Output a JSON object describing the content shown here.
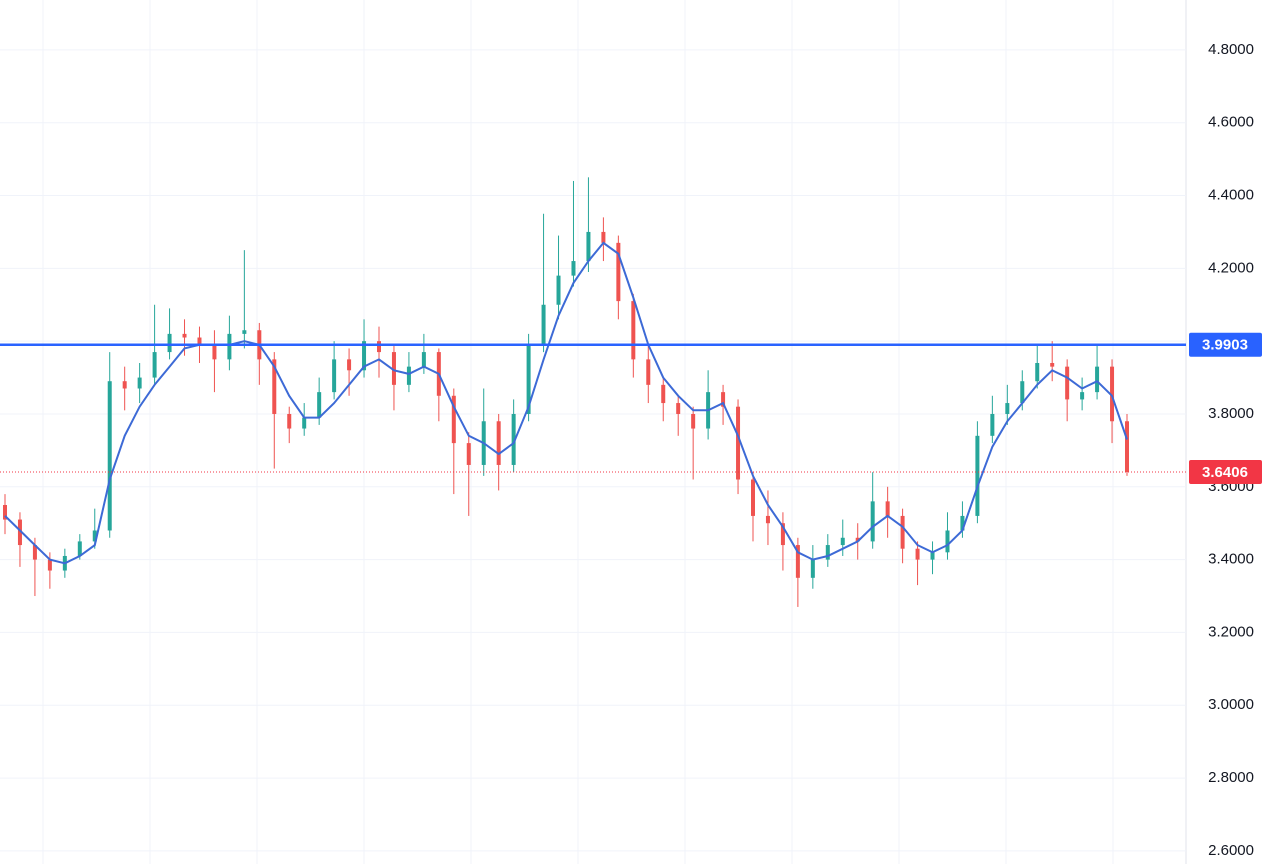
{
  "chart_data": {
    "type": "candlestick",
    "open": [
      3.55,
      3.51,
      3.44,
      3.4,
      3.37,
      3.41,
      3.45,
      3.48,
      3.89,
      3.87,
      3.9,
      3.97,
      4.02,
      4.01,
      3.99,
      3.95,
      4.02,
      4.03,
      3.95,
      3.8,
      3.76,
      3.79,
      3.86,
      3.95,
      3.92,
      4.0,
      3.97,
      3.88,
      3.93,
      3.97,
      3.85,
      3.72,
      3.66,
      3.78,
      3.66,
      3.8,
      3.99,
      4.1,
      4.18,
      4.22,
      4.3,
      4.27,
      4.11,
      3.95,
      3.88,
      3.83,
      3.8,
      3.76,
      3.86,
      3.82,
      3.62,
      3.52,
      3.5,
      3.44,
      3.35,
      3.4,
      3.44,
      3.46,
      3.45,
      3.56,
      3.52,
      3.43,
      3.4,
      3.42,
      3.48,
      3.52,
      3.74,
      3.8,
      3.83,
      3.89,
      3.94,
      3.93,
      3.84,
      3.86,
      3.93,
      3.78
    ],
    "high": [
      3.58,
      3.53,
      3.46,
      3.42,
      3.43,
      3.47,
      3.54,
      3.97,
      3.93,
      3.94,
      4.1,
      4.09,
      4.06,
      4.04,
      4.03,
      4.07,
      4.25,
      4.05,
      3.97,
      3.82,
      3.83,
      3.9,
      4.0,
      3.98,
      4.06,
      4.04,
      3.99,
      3.97,
      4.02,
      3.98,
      3.87,
      3.75,
      3.87,
      3.8,
      3.84,
      4.02,
      4.35,
      4.29,
      4.44,
      4.45,
      4.34,
      4.29,
      4.13,
      3.99,
      3.9,
      3.85,
      3.82,
      3.92,
      3.88,
      3.84,
      3.64,
      3.59,
      3.53,
      3.46,
      3.44,
      3.47,
      3.51,
      3.5,
      3.64,
      3.6,
      3.54,
      3.45,
      3.45,
      3.53,
      3.56,
      3.78,
      3.85,
      3.88,
      3.92,
      3.99,
      4.0,
      3.95,
      3.9,
      3.99,
      3.95,
      3.8
    ],
    "low": [
      3.47,
      3.38,
      3.3,
      3.32,
      3.35,
      3.4,
      3.43,
      3.46,
      3.81,
      3.83,
      3.88,
      3.95,
      3.96,
      3.94,
      3.86,
      3.92,
      3.98,
      3.88,
      3.65,
      3.72,
      3.74,
      3.77,
      3.84,
      3.85,
      3.9,
      3.9,
      3.81,
      3.86,
      3.91,
      3.78,
      3.58,
      3.52,
      3.63,
      3.59,
      3.64,
      3.78,
      3.97,
      4.06,
      4.15,
      4.19,
      4.22,
      4.06,
      3.9,
      3.83,
      3.78,
      3.74,
      3.62,
      3.73,
      3.77,
      3.58,
      3.45,
      3.44,
      3.37,
      3.27,
      3.32,
      3.38,
      3.41,
      3.4,
      3.43,
      3.46,
      3.39,
      3.33,
      3.36,
      3.4,
      3.46,
      3.5,
      3.72,
      3.77,
      3.81,
      3.87,
      3.89,
      3.78,
      3.81,
      3.84,
      3.72,
      3.63
    ],
    "close": [
      3.51,
      3.44,
      3.4,
      3.37,
      3.41,
      3.45,
      3.48,
      3.89,
      3.87,
      3.9,
      3.97,
      4.02,
      4.01,
      3.99,
      3.95,
      4.02,
      4.03,
      3.95,
      3.8,
      3.76,
      3.79,
      3.86,
      3.95,
      3.92,
      4.0,
      3.97,
      3.88,
      3.93,
      3.97,
      3.85,
      3.72,
      3.66,
      3.78,
      3.66,
      3.8,
      3.99,
      4.1,
      4.18,
      4.22,
      4.3,
      4.27,
      4.11,
      3.95,
      3.88,
      3.83,
      3.8,
      3.76,
      3.86,
      3.82,
      3.62,
      3.52,
      3.5,
      3.44,
      3.35,
      3.4,
      3.44,
      3.46,
      3.45,
      3.56,
      3.52,
      3.43,
      3.4,
      3.42,
      3.48,
      3.52,
      3.74,
      3.8,
      3.83,
      3.89,
      3.94,
      3.93,
      3.84,
      3.86,
      3.93,
      3.78,
      3.6406
    ],
    "up_color": "#26a69a",
    "down_color": "#ef5350",
    "ma": {
      "color": "#3d6ad6",
      "values": [
        3.52,
        3.48,
        3.44,
        3.4,
        3.39,
        3.41,
        3.44,
        3.62,
        3.74,
        3.82,
        3.88,
        3.93,
        3.98,
        3.99,
        3.99,
        3.99,
        4.0,
        3.99,
        3.93,
        3.85,
        3.79,
        3.79,
        3.83,
        3.88,
        3.93,
        3.95,
        3.92,
        3.91,
        3.93,
        3.91,
        3.82,
        3.74,
        3.72,
        3.69,
        3.72,
        3.82,
        3.95,
        4.07,
        4.16,
        4.22,
        4.27,
        4.24,
        4.12,
        3.99,
        3.9,
        3.85,
        3.81,
        3.81,
        3.83,
        3.74,
        3.63,
        3.55,
        3.49,
        3.42,
        3.4,
        3.41,
        3.43,
        3.45,
        3.49,
        3.52,
        3.49,
        3.44,
        3.42,
        3.44,
        3.48,
        3.6,
        3.71,
        3.78,
        3.83,
        3.88,
        3.92,
        3.9,
        3.87,
        3.89,
        3.85,
        3.73
      ]
    },
    "hline": {
      "value": 3.9903,
      "color": "#2962ff"
    },
    "last_price": 3.6406,
    "last_price_color": "#f23645",
    "ylim": [
      2.564,
      4.937
    ],
    "yticks": [
      {
        "value": 2.6,
        "label": "2.6000"
      },
      {
        "value": 2.8,
        "label": "2.8000"
      },
      {
        "value": 3.0,
        "label": "3.0000"
      },
      {
        "value": 3.2,
        "label": "3.2000"
      },
      {
        "value": 3.4,
        "label": "3.4000"
      },
      {
        "value": 3.6,
        "label": "3.6000"
      },
      {
        "value": 3.8,
        "label": "3.8000"
      },
      {
        "value": 4.0,
        "label": "4.0000"
      },
      {
        "value": 4.2,
        "label": "4.2000"
      },
      {
        "value": 4.4,
        "label": "4.4000"
      },
      {
        "value": 4.6,
        "label": "4.6000"
      },
      {
        "value": 4.8,
        "label": "4.8000"
      }
    ],
    "grid": true
  }
}
